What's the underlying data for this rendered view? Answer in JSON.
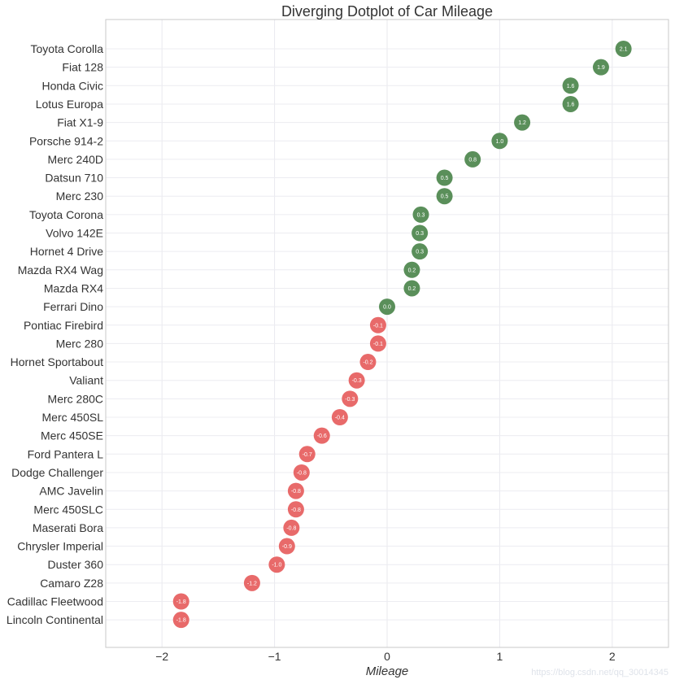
{
  "chart_data": {
    "type": "scatter",
    "title": "Diverging Dotplot of Car Mileage",
    "xlabel": "Mileage",
    "ylabel": "",
    "xlim": [
      -2.5,
      2.5
    ],
    "xticks": [
      -2,
      -1,
      0,
      1,
      2
    ],
    "xtick_labels": [
      "−2",
      "−1",
      "0",
      "1",
      "2"
    ],
    "grid": true,
    "colors": {
      "positive": "#5a8f5a",
      "negative": "#e86a6a"
    },
    "points": [
      {
        "car": "Toyota Corolla",
        "value": 2.1,
        "label": "2.1"
      },
      {
        "car": "Fiat 128",
        "value": 1.9,
        "label": "1.9"
      },
      {
        "car": "Honda Civic",
        "value": 1.63,
        "label": "1.6"
      },
      {
        "car": "Lotus Europa",
        "value": 1.63,
        "label": "1.6"
      },
      {
        "car": "Fiat X1-9",
        "value": 1.2,
        "label": "1.2"
      },
      {
        "car": "Porsche 914-2",
        "value": 1.0,
        "label": "1.0"
      },
      {
        "car": "Merc 240D",
        "value": 0.76,
        "label": "0.8"
      },
      {
        "car": "Datsun 710",
        "value": 0.51,
        "label": "0.5"
      },
      {
        "car": "Merc 230",
        "value": 0.51,
        "label": "0.5"
      },
      {
        "car": "Toyota Corona",
        "value": 0.3,
        "label": "0.3"
      },
      {
        "car": "Volvo 142E",
        "value": 0.29,
        "label": "0.3"
      },
      {
        "car": "Hornet 4 Drive",
        "value": 0.29,
        "label": "0.3"
      },
      {
        "car": "Mazda RX4 Wag",
        "value": 0.22,
        "label": "0.2"
      },
      {
        "car": "Mazda RX4",
        "value": 0.22,
        "label": "0.2"
      },
      {
        "car": "Ferrari Dino",
        "value": 0.0,
        "label": "0.0"
      },
      {
        "car": "Pontiac Firebird",
        "value": -0.08,
        "label": "-0.1"
      },
      {
        "car": "Merc 280",
        "value": -0.08,
        "label": "-0.1"
      },
      {
        "car": "Hornet Sportabout",
        "value": -0.17,
        "label": "-0.2"
      },
      {
        "car": "Valiant",
        "value": -0.27,
        "label": "-0.3"
      },
      {
        "car": "Merc 280C",
        "value": -0.33,
        "label": "-0.3"
      },
      {
        "car": "Merc 450SL",
        "value": -0.42,
        "label": "-0.4"
      },
      {
        "car": "Merc 450SE",
        "value": -0.58,
        "label": "-0.6"
      },
      {
        "car": "Ford Pantera L",
        "value": -0.71,
        "label": "-0.7"
      },
      {
        "car": "Dodge Challenger",
        "value": -0.76,
        "label": "-0.8"
      },
      {
        "car": "AMC Javelin",
        "value": -0.81,
        "label": "-0.8"
      },
      {
        "car": "Merc 450SLC",
        "value": -0.81,
        "label": "-0.8"
      },
      {
        "car": "Maserati Bora",
        "value": -0.85,
        "label": "-0.8"
      },
      {
        "car": "Chrysler Imperial",
        "value": -0.89,
        "label": "-0.9"
      },
      {
        "car": "Duster 360",
        "value": -0.98,
        "label": "-1.0"
      },
      {
        "car": "Camaro Z28",
        "value": -1.2,
        "label": "-1.2"
      },
      {
        "car": "Cadillac Fleetwood",
        "value": -1.83,
        "label": "-1.8"
      },
      {
        "car": "Lincoln Continental",
        "value": -1.83,
        "label": "-1.8"
      }
    ]
  },
  "watermark": "https://blog.csdn.net/qq_30014345"
}
